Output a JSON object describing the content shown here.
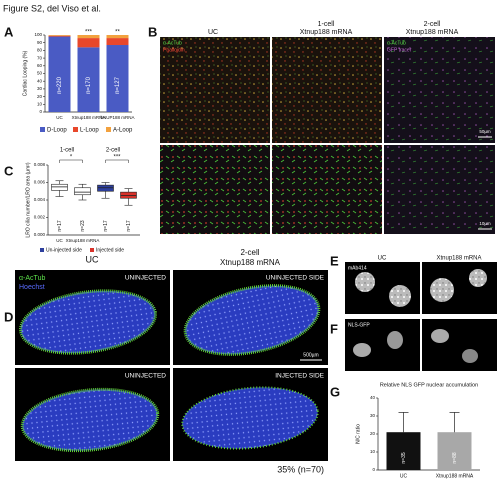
{
  "title": "Figure S2, del Viso et al.",
  "panel_letters": [
    "A",
    "B",
    "C",
    "D",
    "E",
    "F",
    "G"
  ],
  "chart_data": [
    {
      "type": "stacked_bar",
      "ylabel": "Cardiac Looping (%)",
      "categories": [
        "UC",
        "Xtnup188 mRNA",
        "hNUP188 mRNA"
      ],
      "series": [
        {
          "name": "D-Loop",
          "color": "#4a5bc4",
          "values": [
            98,
            84,
            87
          ]
        },
        {
          "name": "L-Loop",
          "color": "#e8472b",
          "values": [
            1,
            12,
            9
          ]
        },
        {
          "name": "A-Loop",
          "color": "#f2a13e",
          "values": [
            1,
            4,
            4
          ]
        }
      ],
      "annotations": [
        "n=220",
        "n=170",
        "n=127"
      ],
      "significance": [
        "***",
        "**"
      ],
      "ylim": [
        0,
        100
      ],
      "yticks": [
        0,
        10,
        20,
        30,
        40,
        50,
        60,
        70,
        80,
        90,
        100
      ]
    },
    {
      "type": "box",
      "ylabel": "LRO cilia number/LRO area (µm²)",
      "groups": [
        "1-cell",
        "2-cell"
      ],
      "categories": [
        "UC",
        "Xtnup188 mRNA",
        null,
        null
      ],
      "boxes": [
        {
          "min": 0.0044,
          "q1": 0.0051,
          "median": 0.0055,
          "q3": 0.0058,
          "max": 0.0062,
          "color": "#ffffff"
        },
        {
          "min": 0.004,
          "q1": 0.0046,
          "median": 0.0049,
          "q3": 0.0054,
          "max": 0.0058,
          "color": "#ffffff"
        },
        {
          "min": 0.0042,
          "q1": 0.005,
          "median": 0.0054,
          "q3": 0.0057,
          "max": 0.006,
          "color": "#2d3f9e"
        },
        {
          "min": 0.0034,
          "q1": 0.0042,
          "median": 0.0045,
          "q3": 0.0049,
          "max": 0.0053,
          "color": "#d8322a"
        }
      ],
      "annotations": [
        "n=17",
        "n=23",
        "n=17",
        "n=17"
      ],
      "significance": [
        "*",
        "***"
      ],
      "legend": [
        {
          "name": "Un-injected side",
          "color": "#2d3f9e"
        },
        {
          "name": "Injected side",
          "color": "#d8322a"
        }
      ],
      "ylim": [
        0,
        0.008
      ],
      "yticks": [
        {
          "value": 0,
          "label": "0.000"
        },
        {
          "value": 0.002,
          "label": "0.002"
        },
        {
          "value": 0.004,
          "label": "0.004"
        },
        {
          "value": 0.006,
          "label": "0.006"
        },
        {
          "value": 0.008,
          "label": "0.008"
        }
      ]
    },
    {
      "type": "bar",
      "title": "Relative NLS GFP nuclear accumulation",
      "ylabel": "N/C ratio",
      "categories": [
        "UC",
        "Xtnup188 mRNA"
      ],
      "values": [
        21,
        21
      ],
      "errors": [
        11,
        11
      ],
      "colors": [
        "#111111",
        "#a8a8a8"
      ],
      "annotations": [
        "n=35",
        "n=88"
      ],
      "ylim": [
        0,
        40
      ],
      "yticks": [
        0,
        10,
        20,
        30,
        40
      ]
    }
  ],
  "images": {
    "B": {
      "headers": [
        "UC",
        "1-cell",
        "Xtnup188 mRNA",
        "2-cell",
        "Xtnup188 mRNA"
      ],
      "stains": [
        "α-AcTub",
        "Phalloidin",
        "α-AcTub",
        "GFP tracer"
      ],
      "scale_bars": [
        "50µm",
        "10µm"
      ]
    },
    "D": {
      "headers": [
        "UC",
        "2-cell",
        "Xtnup188 mRNA"
      ],
      "labels": [
        "UNINJECTED",
        "UNINJECTED SIDE",
        "UNINJECTED",
        "INJECTED SIDE"
      ],
      "stains": [
        "α-AcTub",
        "Hoechst"
      ],
      "scale_bar": "500µm",
      "annotation": "35% (n=70)"
    },
    "E": {
      "headers": [
        "UC",
        "Xtnup188 mRNA"
      ],
      "stain": "mAb414"
    },
    "F": {
      "stain": "NLS-GFP"
    }
  }
}
